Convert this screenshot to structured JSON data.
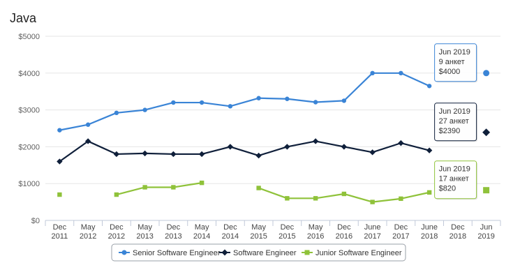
{
  "chart_data": {
    "type": "line",
    "title": "Java",
    "categories": [
      "Dec 2011",
      "May 2012",
      "Dec 2012",
      "May 2013",
      "Dec 2013",
      "May 2014",
      "Dec 2014",
      "May 2015",
      "Dec 2015",
      "May 2016",
      "Dec 2016",
      "June 2017",
      "Dec 2017",
      "June 2018",
      "Dec 2018",
      "Jun 2019"
    ],
    "category_lines": [
      [
        "Dec",
        "2011"
      ],
      [
        "May",
        "2012"
      ],
      [
        "Dec",
        "2012"
      ],
      [
        "May",
        "2013"
      ],
      [
        "Dec",
        "2013"
      ],
      [
        "May",
        "2014"
      ],
      [
        "Dec",
        "2014"
      ],
      [
        "May",
        "2015"
      ],
      [
        "Dec",
        "2015"
      ],
      [
        "May",
        "2016"
      ],
      [
        "Dec",
        "2016"
      ],
      [
        "June",
        "2017"
      ],
      [
        "Dec",
        "2017"
      ],
      [
        "June",
        "2018"
      ],
      [
        "Dec",
        "2018"
      ],
      [
        "Jun",
        "2019"
      ]
    ],
    "y_ticks": [
      "$0",
      "$1000",
      "$2000",
      "$3000",
      "$4000",
      "$5000"
    ],
    "ylim": [
      0,
      5000
    ],
    "grid": true,
    "legend_position": "bottom-center",
    "series": [
      {
        "name": "Senior Software Engineer",
        "color": "#3a84d6",
        "marker": "circle",
        "values": [
          2450,
          2600,
          2920,
          3000,
          3200,
          3200,
          3100,
          3320,
          3300,
          3210,
          3250,
          4000,
          4000,
          3650,
          null,
          4000
        ]
      },
      {
        "name": "Software Engineer",
        "color": "#0f1f3a",
        "marker": "diamond",
        "values": [
          1600,
          2150,
          1800,
          1820,
          1800,
          1800,
          2000,
          1760,
          2000,
          2150,
          2000,
          1850,
          2100,
          1900,
          null,
          2390
        ]
      },
      {
        "name": "Junior Software Engineer",
        "color": "#8fc23a",
        "marker": "square",
        "values": [
          700,
          null,
          700,
          900,
          900,
          1020,
          null,
          880,
          600,
          600,
          720,
          500,
          590,
          760,
          null,
          820
        ]
      }
    ],
    "tooltips": [
      {
        "series": 0,
        "point": 15,
        "lines": [
          "Jun 2019",
          "9 анкет",
          "$4000"
        ],
        "border": "#3a84d6"
      },
      {
        "series": 1,
        "point": 15,
        "lines": [
          "Jun 2019",
          "27 анкет",
          "$2390"
        ],
        "border": "#0f1f3a"
      },
      {
        "series": 2,
        "point": 15,
        "lines": [
          "Jun 2019",
          "17 анкет",
          "$820"
        ],
        "border": "#8fc23a"
      }
    ]
  }
}
